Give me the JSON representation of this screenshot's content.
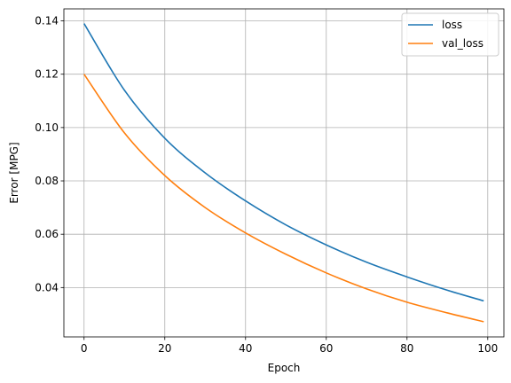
{
  "chart_data": {
    "type": "line",
    "title": "",
    "xlabel": "Epoch",
    "ylabel": "Error [MPG]",
    "xlim": [
      -5,
      104
    ],
    "ylim": [
      0.0215,
      0.1445
    ],
    "xticks": [
      0,
      20,
      40,
      60,
      80,
      100
    ],
    "xtick_labels": [
      "0",
      "20",
      "40",
      "60",
      "80",
      "100"
    ],
    "yticks": [
      0.04,
      0.06,
      0.08,
      0.1,
      0.12,
      0.14
    ],
    "ytick_labels": [
      "0.04",
      "0.06",
      "0.08",
      "0.10",
      "0.12",
      "0.14"
    ],
    "grid": true,
    "legend": "top-right",
    "x": [
      0,
      10,
      20,
      30,
      40,
      50,
      60,
      70,
      80,
      90,
      99
    ],
    "series": [
      {
        "name": "loss",
        "color": "#1f77b4",
        "values": [
          0.139,
          0.114,
          0.096,
          0.083,
          0.0725,
          0.0635,
          0.056,
          0.0495,
          0.044,
          0.039,
          0.035
        ]
      },
      {
        "name": "val_loss",
        "color": "#ff7f0e",
        "values": [
          0.12,
          0.098,
          0.082,
          0.07,
          0.0605,
          0.0525,
          0.0455,
          0.0395,
          0.0345,
          0.0305,
          0.0272
        ]
      }
    ]
  }
}
